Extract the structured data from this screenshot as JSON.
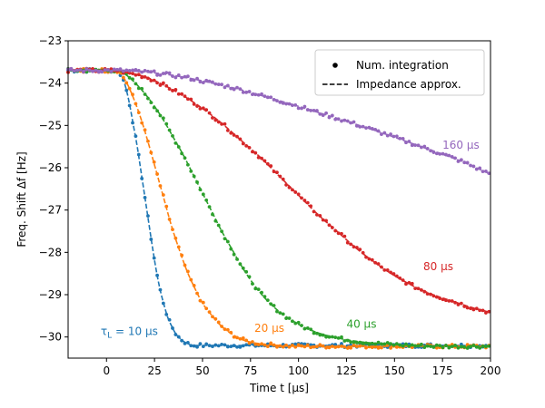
{
  "chart_data": {
    "type": "line",
    "title": "",
    "xlabel": "Time t [μs]",
    "ylabel": "Freq. Shift Δf [Hz]",
    "xlim": [
      -20,
      200
    ],
    "ylim": [
      -30.5,
      -23
    ],
    "xticks": [
      0,
      25,
      50,
      75,
      100,
      125,
      150,
      175,
      200
    ],
    "yticks": [
      -23,
      -24,
      -25,
      -26,
      -27,
      -28,
      -29,
      -30
    ],
    "grid": false,
    "legend": {
      "placement": "top-right",
      "entries": [
        {
          "label": "Num. integration",
          "marker": "dot"
        },
        {
          "label": "Impedance approx.",
          "marker": "dashed-line"
        }
      ]
    },
    "series": [
      {
        "name": "10 μs",
        "label": "τL = 10 μs",
        "label_prefix": "τ",
        "label_sub": "L",
        "label_suffix": " =  10 μs",
        "color": "#1f77b4",
        "start_time": 5,
        "label_at": [
          -3,
          -29.95
        ],
        "label_anchor": "start",
        "x": [
          -20,
          5,
          8,
          10,
          12,
          14,
          16,
          18,
          20,
          22,
          24,
          26,
          28,
          30,
          32,
          34,
          36,
          38,
          40,
          42,
          45,
          50,
          60,
          80,
          100,
          125,
          150,
          175,
          200
        ],
        "y": [
          -23.7,
          -23.7,
          -23.85,
          -24.1,
          -24.5,
          -25.0,
          -25.5,
          -26.1,
          -26.7,
          -27.3,
          -27.9,
          -28.45,
          -28.9,
          -29.25,
          -29.55,
          -29.75,
          -29.92,
          -30.02,
          -30.1,
          -30.15,
          -30.2,
          -30.2,
          -30.2,
          -30.2,
          -30.2,
          -30.2,
          -30.2,
          -30.2,
          -30.2
        ]
      },
      {
        "name": "20 μs",
        "label": "20 μs",
        "color": "#ff7f0e",
        "start_time": 5,
        "label_at": [
          77,
          -29.88
        ],
        "label_anchor": "start",
        "x": [
          -20,
          5,
          10,
          14,
          18,
          22,
          26,
          30,
          34,
          38,
          42,
          46,
          50,
          55,
          60,
          65,
          70,
          75,
          80,
          90,
          100,
          120,
          150,
          175,
          200
        ],
        "y": [
          -23.7,
          -23.7,
          -23.95,
          -24.35,
          -24.85,
          -25.45,
          -26.1,
          -26.75,
          -27.4,
          -27.95,
          -28.45,
          -28.85,
          -29.2,
          -29.5,
          -29.75,
          -29.92,
          -30.05,
          -30.12,
          -30.16,
          -30.2,
          -30.22,
          -30.22,
          -30.22,
          -30.22,
          -30.22
        ]
      },
      {
        "name": "40 μs",
        "label": "40 μs",
        "color": "#2ca02c",
        "start_time": 5,
        "label_at": [
          125,
          -29.78
        ],
        "label_anchor": "start",
        "x": [
          -20,
          5,
          10,
          15,
          20,
          25,
          30,
          35,
          40,
          45,
          50,
          55,
          60,
          65,
          70,
          75,
          80,
          85,
          90,
          100,
          110,
          120,
          130,
          140,
          150,
          160,
          175,
          190,
          200
        ],
        "y": [
          -23.7,
          -23.7,
          -23.8,
          -24.0,
          -24.25,
          -24.55,
          -24.9,
          -25.3,
          -25.7,
          -26.15,
          -26.6,
          -27.05,
          -27.5,
          -27.9,
          -28.3,
          -28.65,
          -28.95,
          -29.2,
          -29.4,
          -29.7,
          -29.9,
          -30.02,
          -30.1,
          -30.15,
          -30.18,
          -30.2,
          -30.22,
          -30.22,
          -30.22
        ]
      },
      {
        "name": "80 μs",
        "label": "80 μs",
        "color": "#d62728",
        "start_time": 5,
        "label_at": [
          165,
          -28.42
        ],
        "label_anchor": "start",
        "x": [
          -20,
          5,
          10,
          20,
          30,
          40,
          50,
          60,
          70,
          80,
          90,
          100,
          110,
          120,
          130,
          140,
          150,
          160,
          170,
          180,
          190,
          200
        ],
        "y": [
          -23.7,
          -23.7,
          -23.75,
          -23.85,
          -24.05,
          -24.3,
          -24.6,
          -24.95,
          -25.35,
          -25.75,
          -26.2,
          -26.65,
          -27.1,
          -27.5,
          -27.9,
          -28.25,
          -28.55,
          -28.8,
          -29.0,
          -29.15,
          -29.3,
          -29.42
        ]
      },
      {
        "name": "160 μs",
        "label": "160 μs",
        "color": "#9467bd",
        "start_time": 5,
        "label_at": [
          175,
          -25.55
        ],
        "label_anchor": "start",
        "x": [
          -20,
          5,
          15,
          25,
          35,
          45,
          55,
          65,
          75,
          85,
          95,
          105,
          115,
          125,
          135,
          145,
          155,
          165,
          175,
          185,
          195,
          200
        ],
        "y": [
          -23.7,
          -23.7,
          -23.72,
          -23.76,
          -23.82,
          -23.9,
          -24.0,
          -24.1,
          -24.22,
          -24.35,
          -24.48,
          -24.62,
          -24.76,
          -24.9,
          -25.05,
          -25.2,
          -25.36,
          -25.52,
          -25.68,
          -25.85,
          -26.05,
          -26.15
        ]
      }
    ]
  }
}
